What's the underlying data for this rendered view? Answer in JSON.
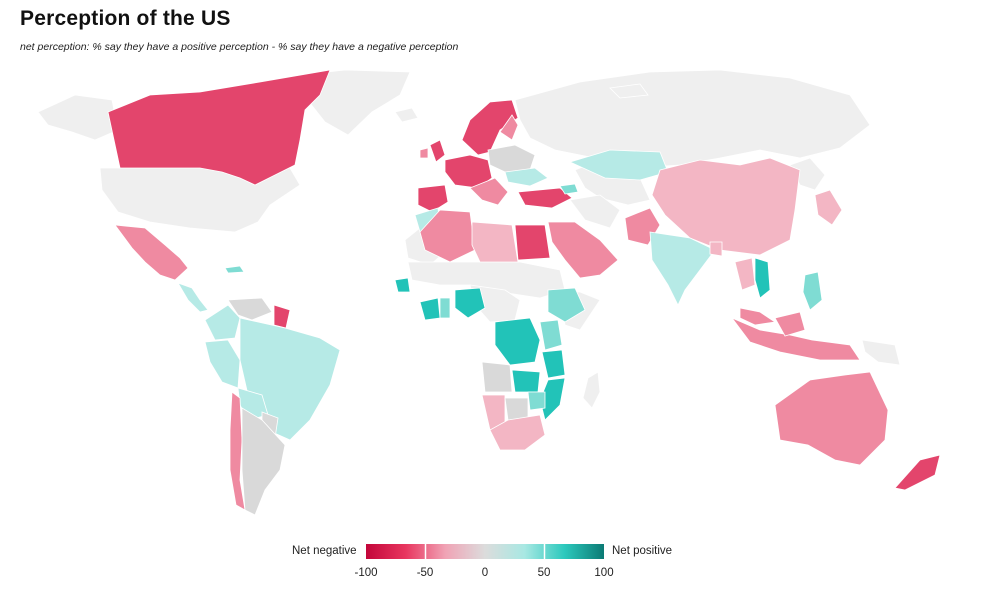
{
  "title": "Perception of the US",
  "subtitle": "net perception: % say they have a positive perception - % say they have a negative perception",
  "legend": {
    "negative_label": "Net negative",
    "positive_label": "Net positive",
    "ticks": [
      "-100",
      "-50",
      "0",
      "50",
      "100"
    ],
    "scale_min": -100,
    "scale_max": 100,
    "colors": [
      "#c3063a",
      "#e8365f",
      "#f0a3b5",
      "#dcdcdc",
      "#a8e8e3",
      "#2cc9bd",
      "#0b7a74"
    ]
  },
  "colors": {
    "no_data": "#efefef",
    "strong_negative": "#e3456c",
    "negative": "#ef8aa1",
    "mild_negative": "#f3b6c4",
    "neutral": "#d9d9d9",
    "mild_positive": "#b6eae6",
    "positive": "#7fdcd3",
    "strong_positive": "#22c3b8"
  }
}
